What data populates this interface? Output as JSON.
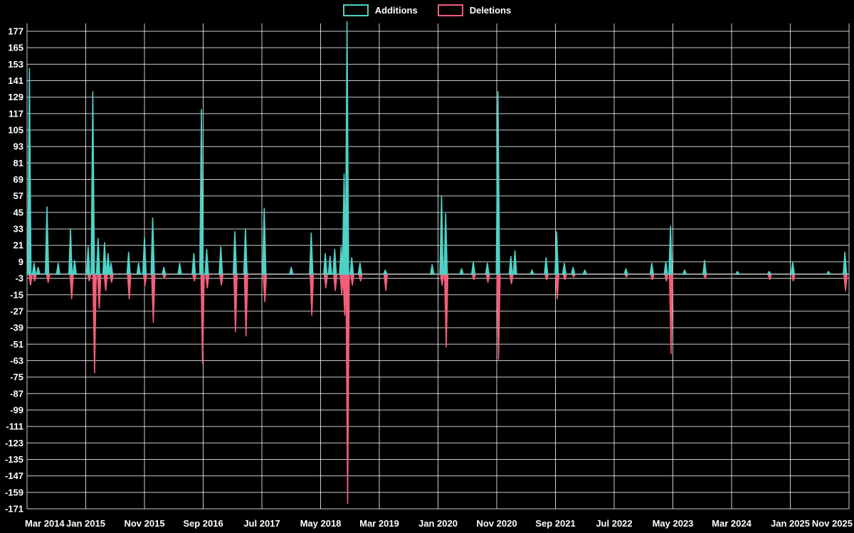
{
  "page": {
    "background": "#000000"
  },
  "legend": {
    "items": [
      {
        "label": "Additions",
        "color": "#4fd1c5"
      },
      {
        "label": "Deletions",
        "color": "#f25f7a"
      }
    ]
  },
  "chart_data": {
    "type": "line",
    "description_of_marks": "spiky time series of code additions (positive, teal) and deletions (negative, pink) with gray zero baseline",
    "legend_position": "top-center",
    "grid": true,
    "grid_color": "rgba(255,255,255,0.8)",
    "zero_line_color": "#9e9e9e",
    "x": {
      "unit": "months since first tick",
      "span": 140,
      "tick_positions": [
        0,
        10,
        20,
        30,
        40,
        50,
        60,
        70,
        80,
        90,
        100,
        110,
        120,
        130,
        140
      ],
      "tick_labels": [
        "Mar 2014",
        "Jan 2015",
        "Nov 2015",
        "Sep 2016",
        "Jul 2017",
        "May 2018",
        "Mar 2019",
        "Jan 2020",
        "Nov 2020",
        "Sep 2021",
        "Jul 2022",
        "May 2023",
        "Mar 2024",
        "Jan 2025",
        "Nov 2025"
      ]
    },
    "y": {
      "min": -171,
      "max": 177,
      "tick_step": 12,
      "ticks": [
        177,
        165,
        153,
        141,
        129,
        117,
        105,
        93,
        81,
        69,
        57,
        45,
        33,
        21,
        9,
        -3,
        -15,
        -27,
        -39,
        -51,
        -63,
        -75,
        -87,
        -99,
        -111,
        -123,
        -135,
        -147,
        -159,
        -171
      ]
    },
    "series": [
      {
        "name": "Additions",
        "color": "#4fd1c5",
        "baseline": 0,
        "spikes": [
          [
            0.4,
            150
          ],
          [
            1.2,
            8
          ],
          [
            1.9,
            5
          ],
          [
            3.4,
            49
          ],
          [
            5.3,
            8
          ],
          [
            7.4,
            33
          ],
          [
            8.1,
            10
          ],
          [
            10.4,
            20
          ],
          [
            11.2,
            133
          ],
          [
            12.1,
            26
          ],
          [
            13.2,
            23
          ],
          [
            13.8,
            15
          ],
          [
            14.3,
            8
          ],
          [
            17.3,
            16
          ],
          [
            19.0,
            8
          ],
          [
            20.0,
            27
          ],
          [
            21.4,
            41
          ],
          [
            23.3,
            5
          ],
          [
            26.0,
            8
          ],
          [
            28.4,
            15
          ],
          [
            29.7,
            120
          ],
          [
            30.6,
            18
          ],
          [
            33.0,
            20
          ],
          [
            35.4,
            31
          ],
          [
            37.2,
            33
          ],
          [
            40.4,
            48
          ],
          [
            45.0,
            5
          ],
          [
            48.4,
            30
          ],
          [
            50.8,
            15
          ],
          [
            51.6,
            13
          ],
          [
            52.4,
            18
          ],
          [
            53.5,
            20
          ],
          [
            54.0,
            73
          ],
          [
            54.5,
            184
          ],
          [
            55.3,
            12
          ],
          [
            56.7,
            8
          ],
          [
            61.0,
            3
          ],
          [
            69.0,
            7
          ],
          [
            70.6,
            57
          ],
          [
            71.3,
            44
          ],
          [
            74.0,
            4
          ],
          [
            76.0,
            9
          ],
          [
            78.4,
            8
          ],
          [
            80.2,
            133
          ],
          [
            82.4,
            13
          ],
          [
            83.1,
            17
          ],
          [
            86.0,
            3
          ],
          [
            88.4,
            12
          ],
          [
            90.2,
            31
          ],
          [
            91.5,
            8
          ],
          [
            93.0,
            5
          ],
          [
            95.0,
            3
          ],
          [
            102.0,
            4
          ],
          [
            106.4,
            8
          ],
          [
            108.8,
            9
          ],
          [
            109.6,
            35
          ],
          [
            112.0,
            3
          ],
          [
            115.4,
            10
          ],
          [
            121.0,
            2
          ],
          [
            126.4,
            2
          ],
          [
            130.4,
            9
          ],
          [
            136.5,
            2
          ],
          [
            139.3,
            16
          ]
        ]
      },
      {
        "name": "Deletions",
        "color": "#f25f7a",
        "baseline": 0,
        "spikes": [
          [
            0.6,
            -8
          ],
          [
            1.3,
            -5
          ],
          [
            3.6,
            -6
          ],
          [
            7.6,
            -18
          ],
          [
            10.6,
            -5
          ],
          [
            11.5,
            -72
          ],
          [
            12.3,
            -25
          ],
          [
            13.4,
            -12
          ],
          [
            14.4,
            -6
          ],
          [
            17.4,
            -18
          ],
          [
            20.1,
            -8
          ],
          [
            21.5,
            -35
          ],
          [
            23.4,
            -3
          ],
          [
            28.5,
            -5
          ],
          [
            29.9,
            -65
          ],
          [
            30.7,
            -10
          ],
          [
            33.1,
            -8
          ],
          [
            35.5,
            -42
          ],
          [
            37.3,
            -45
          ],
          [
            40.5,
            -20
          ],
          [
            48.5,
            -30
          ],
          [
            50.9,
            -10
          ],
          [
            52.5,
            -12
          ],
          [
            53.6,
            -15
          ],
          [
            54.1,
            -30
          ],
          [
            54.6,
            -167
          ],
          [
            55.4,
            -8
          ],
          [
            56.8,
            -5
          ],
          [
            61.1,
            -12
          ],
          [
            70.7,
            -8
          ],
          [
            71.4,
            -53
          ],
          [
            76.1,
            -4
          ],
          [
            78.5,
            -6
          ],
          [
            80.3,
            -62
          ],
          [
            82.5,
            -7
          ],
          [
            88.5,
            -4
          ],
          [
            90.3,
            -18
          ],
          [
            91.6,
            -4
          ],
          [
            93.1,
            -2
          ],
          [
            102.1,
            -2
          ],
          [
            106.5,
            -4
          ],
          [
            108.9,
            -5
          ],
          [
            109.7,
            -58
          ],
          [
            115.5,
            -3
          ],
          [
            126.5,
            -4
          ],
          [
            130.5,
            -5
          ],
          [
            139.4,
            -12
          ]
        ]
      }
    ]
  }
}
